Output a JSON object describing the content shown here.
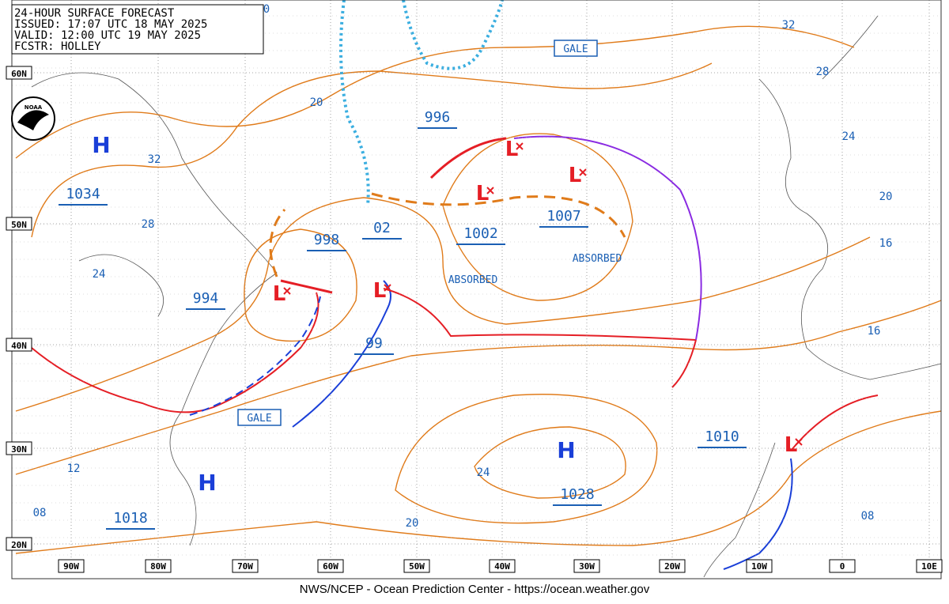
{
  "header": {
    "lines": [
      "24-HOUR SURFACE FORECAST",
      "ISSUED: 17:07 UTC 18 MAY 2025",
      "VALID:  12:00 UTC 19 MAY 2025",
      "FCSTR:  HOLLEY"
    ]
  },
  "logo": "NOAA",
  "lat_labels": [
    "60N",
    "50N",
    "40N",
    "30N",
    "20N"
  ],
  "lon_labels": [
    "90W",
    "80W",
    "70W",
    "60W",
    "50W",
    "40W",
    "30W",
    "20W",
    "10W",
    "0",
    "10E"
  ],
  "pressure_labels": [
    "996",
    "1034",
    "998",
    "02",
    "1002",
    "1007",
    "994",
    "99",
    "1010",
    "1028",
    "1018"
  ],
  "highs": [
    "H",
    "H",
    "H"
  ],
  "lows": [
    "L",
    "L",
    "L",
    "L",
    "L",
    "L"
  ],
  "warnings": [
    "GALE",
    "GALE"
  ],
  "notes": [
    "ABSORBED",
    "ABSORBED"
  ],
  "isobar_labels": [
    "32",
    "28",
    "24",
    "20",
    "16",
    "16",
    "08",
    "32",
    "28",
    "24",
    "20",
    "12",
    "08",
    "24",
    "20",
    "0"
  ],
  "footer": "NWS/NCEP - Ocean Prediction Center - https://ocean.weather.gov"
}
